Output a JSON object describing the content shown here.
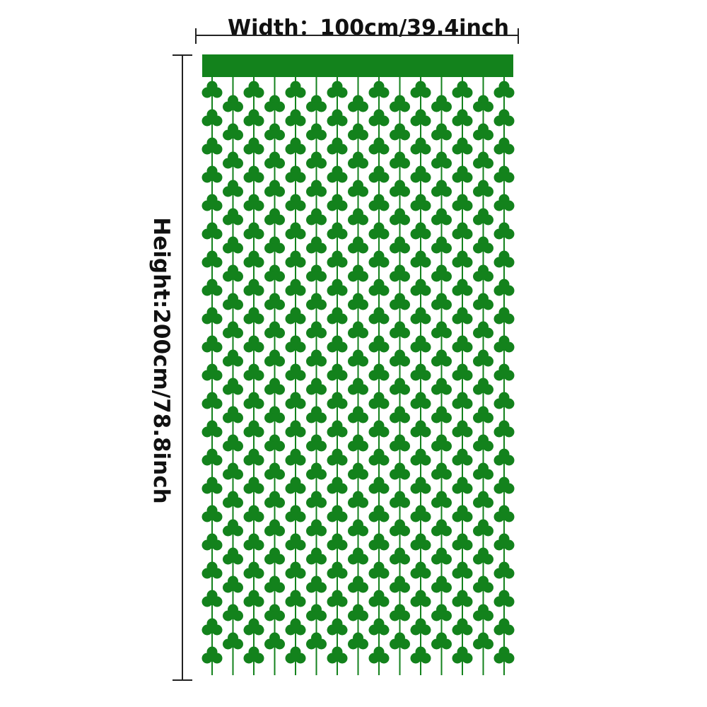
{
  "dimensions": {
    "width_label": "Width：100cm/39.4inch",
    "height_label": "Height:200cm/78.8inch"
  },
  "product": {
    "name_icon": "shamrock-curtain",
    "color": "#13821c"
  }
}
